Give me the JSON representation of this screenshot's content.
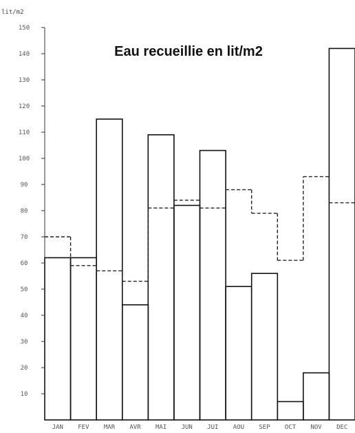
{
  "chart_data": {
    "type": "bar",
    "title": "Eau recueillie en lit/m2",
    "unit_label": "lit/m2",
    "categories": [
      "JAN",
      "FEV",
      "MAR",
      "AVR",
      "MAI",
      "JUN",
      "JUI",
      "AOU",
      "SEP",
      "OCT",
      "NOV",
      "DEC"
    ],
    "series": [
      {
        "style": "solid",
        "values": [
          62,
          62,
          115,
          44,
          109,
          82,
          103,
          51,
          56,
          7,
          18,
          142
        ]
      },
      {
        "style": "dashed",
        "values": [
          70,
          59,
          57,
          53,
          81,
          84,
          81,
          88,
          79,
          61,
          93,
          83
        ]
      }
    ],
    "yticks": [
      10,
      20,
      30,
      40,
      50,
      60,
      70,
      80,
      90,
      100,
      110,
      120,
      130,
      140,
      150
    ],
    "ylim": [
      0,
      150
    ],
    "grid": false,
    "colors": {
      "solid": "#111111",
      "dashed": "#222222",
      "axis": "#333333"
    }
  }
}
